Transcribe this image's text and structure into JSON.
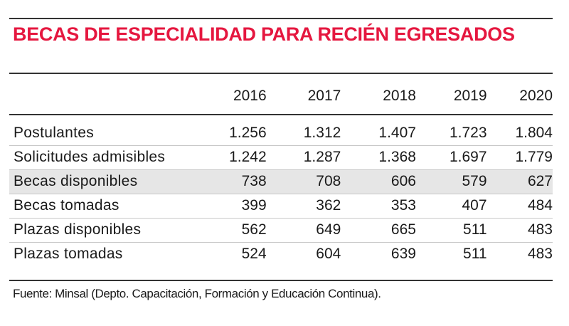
{
  "chart_data": {
    "type": "table",
    "title": "BECAS DE ESPECIALIDAD PARA RECIÉN EGRESADOS",
    "columns": [
      "2016",
      "2017",
      "2018",
      "2019",
      "2020"
    ],
    "rows": [
      {
        "label": "Postulantes",
        "values": [
          "1.256",
          "1.312",
          "1.407",
          "1.723",
          "1.804"
        ],
        "shaded": false
      },
      {
        "label": "Solicitudes admisibles",
        "values": [
          "1.242",
          "1.287",
          "1.368",
          "1.697",
          "1.779"
        ],
        "shaded": false
      },
      {
        "label": "Becas disponibles",
        "values": [
          "738",
          "708",
          "606",
          "579",
          "627"
        ],
        "shaded": true
      },
      {
        "label": "Becas tomadas",
        "values": [
          "399",
          "362",
          "353",
          "407",
          "484"
        ],
        "shaded": false
      },
      {
        "label": "Plazas disponibles",
        "values": [
          "562",
          "649",
          "665",
          "511",
          "483"
        ],
        "shaded": false
      },
      {
        "label": "Plazas tomadas",
        "values": [
          "524",
          "604",
          "639",
          "511",
          "483"
        ],
        "shaded": false
      }
    ],
    "source": "Fuente: Minsal (Depto. Capacitación, Formación y Educación Continua)."
  },
  "colors": {
    "title": "#e5173f",
    "shaded_row": "#e6e6e6",
    "rule": "#333333"
  }
}
